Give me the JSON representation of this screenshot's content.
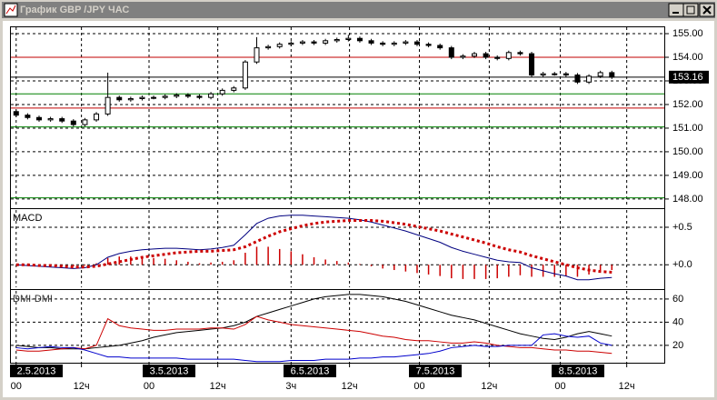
{
  "chart_data": [
    {
      "type": "candlestick",
      "title": "График GBP /JPY ЧАС",
      "x": [
        0,
        1,
        2,
        3,
        4,
        5,
        6,
        7,
        8,
        9,
        10,
        11,
        12,
        13,
        14,
        15,
        16,
        17,
        18,
        19,
        20,
        21,
        22,
        23,
        24,
        25,
        26,
        27,
        28,
        29,
        30,
        31,
        32,
        33,
        34,
        35,
        36,
        37,
        38,
        39,
        40,
        41,
        42,
        43,
        44,
        45,
        46,
        47,
        48,
        49,
        50,
        51,
        52
      ],
      "open": [
        151.7,
        151.55,
        151.45,
        151.35,
        151.4,
        151.3,
        151.15,
        151.35,
        151.6,
        152.3,
        152.2,
        152.25,
        152.3,
        152.3,
        152.35,
        152.4,
        152.35,
        152.3,
        152.45,
        152.6,
        152.7,
        153.8,
        154.4,
        154.45,
        154.55,
        154.6,
        154.65,
        154.6,
        154.7,
        154.75,
        154.8,
        154.7,
        154.6,
        154.55,
        154.6,
        154.65,
        154.55,
        154.5,
        154.4,
        154.0,
        154.05,
        154.15,
        154.0,
        153.95,
        154.2,
        154.15,
        153.25,
        153.3,
        153.3,
        153.25,
        152.95,
        153.2,
        153.35
      ],
      "high": [
        151.78,
        151.63,
        151.53,
        151.48,
        151.48,
        151.38,
        151.43,
        151.68,
        153.35,
        152.38,
        152.33,
        152.38,
        152.38,
        152.43,
        152.48,
        152.48,
        152.43,
        152.53,
        152.68,
        152.78,
        153.88,
        154.85,
        154.53,
        154.63,
        154.68,
        154.73,
        154.73,
        154.78,
        154.83,
        154.95,
        154.88,
        154.78,
        154.68,
        154.68,
        154.73,
        154.73,
        154.63,
        154.58,
        154.48,
        154.13,
        154.23,
        154.23,
        154.08,
        154.28,
        154.28,
        154.23,
        153.38,
        153.38,
        153.38,
        153.33,
        153.28,
        153.43,
        153.43
      ],
      "low": [
        151.47,
        151.37,
        151.27,
        151.27,
        151.22,
        151.07,
        151.07,
        151.27,
        151.52,
        152.12,
        152.12,
        152.17,
        152.22,
        152.22,
        152.27,
        152.27,
        152.22,
        152.22,
        152.37,
        152.52,
        152.62,
        153.72,
        154.32,
        154.37,
        154.47,
        154.52,
        154.52,
        154.52,
        154.62,
        154.67,
        154.62,
        154.52,
        154.47,
        154.47,
        154.52,
        154.47,
        154.42,
        154.32,
        153.92,
        153.92,
        153.97,
        153.92,
        153.87,
        153.87,
        154.07,
        153.17,
        153.17,
        153.22,
        153.17,
        152.87,
        152.87,
        153.12,
        153.08
      ],
      "close": [
        151.55,
        151.45,
        151.35,
        151.4,
        151.3,
        151.15,
        151.35,
        151.6,
        152.3,
        152.2,
        152.25,
        152.3,
        152.3,
        152.35,
        152.4,
        152.35,
        152.3,
        152.45,
        152.6,
        152.7,
        153.8,
        154.4,
        154.45,
        154.55,
        154.6,
        154.65,
        154.6,
        154.7,
        154.75,
        154.8,
        154.7,
        154.6,
        154.55,
        154.6,
        154.65,
        154.55,
        154.5,
        154.4,
        154.0,
        154.05,
        154.15,
        154.0,
        153.95,
        154.2,
        154.15,
        153.25,
        153.3,
        153.3,
        153.25,
        152.95,
        153.2,
        153.35,
        153.16
      ],
      "xlim": [
        -0.3,
        56.5
      ],
      "ylim": [
        147.65,
        155.27
      ],
      "yticks": [
        {
          "value": 148,
          "label": "148.00"
        },
        {
          "value": 149,
          "label": "149.00"
        },
        {
          "value": 150,
          "label": "150.00"
        },
        {
          "value": 151,
          "label": "151.00"
        },
        {
          "value": 152,
          "label": "152.00"
        },
        {
          "value": 153,
          "label": "153.00"
        },
        {
          "value": 154,
          "label": "154.00"
        },
        {
          "value": 155,
          "label": "155.00"
        }
      ],
      "levels": [
        {
          "value": 154.0,
          "color": "#c00000"
        },
        {
          "value": 152.45,
          "color": "#008000"
        },
        {
          "value": 151.85,
          "color": "#c00000"
        },
        {
          "value": 151.05,
          "color": "#008000"
        },
        {
          "value": 148.05,
          "color": "#008000"
        }
      ],
      "last_price": 153.16,
      "grid": true
    },
    {
      "type": "line",
      "title": "MACD",
      "ylim": [
        -0.3,
        0.73
      ],
      "yticks": [
        {
          "value": 0,
          "label": "+0.0"
        },
        {
          "value": 0.5,
          "label": "+0.5"
        }
      ],
      "grid": true,
      "series": [
        {
          "style": "histogram",
          "color": "#cc0000",
          "values": [
            0.0,
            -0.01,
            -0.01,
            -0.02,
            -0.02,
            -0.02,
            -0.01,
            0.02,
            0.09,
            0.11,
            0.11,
            0.1,
            0.09,
            0.08,
            0.06,
            0.04,
            0.02,
            0.03,
            0.04,
            0.06,
            0.16,
            0.24,
            0.24,
            0.21,
            0.18,
            0.14,
            0.1,
            0.07,
            0.05,
            0.03,
            0.01,
            -0.02,
            -0.05,
            -0.07,
            -0.09,
            -0.11,
            -0.13,
            -0.15,
            -0.18,
            -0.19,
            -0.19,
            -0.19,
            -0.18,
            -0.16,
            -0.14,
            -0.16,
            -0.16,
            -0.16,
            -0.15,
            -0.16,
            -0.13,
            -0.09,
            -0.07
          ]
        },
        {
          "style": "line",
          "color": "#000080",
          "values": [
            0.0,
            -0.01,
            -0.02,
            -0.03,
            -0.04,
            -0.05,
            -0.04,
            0.0,
            0.1,
            0.15,
            0.18,
            0.2,
            0.21,
            0.22,
            0.22,
            0.21,
            0.2,
            0.21,
            0.23,
            0.26,
            0.4,
            0.55,
            0.62,
            0.65,
            0.66,
            0.66,
            0.65,
            0.64,
            0.63,
            0.62,
            0.6,
            0.57,
            0.53,
            0.49,
            0.45,
            0.4,
            0.35,
            0.3,
            0.23,
            0.18,
            0.14,
            0.1,
            0.06,
            0.04,
            0.03,
            -0.04,
            -0.08,
            -0.12,
            -0.15,
            -0.2,
            -0.2,
            -0.18,
            -0.17
          ]
        },
        {
          "style": "dots",
          "color": "#cc0000",
          "values": [
            0.0,
            0.0,
            -0.01,
            -0.01,
            -0.02,
            -0.03,
            -0.03,
            -0.02,
            0.01,
            0.04,
            0.07,
            0.1,
            0.12,
            0.14,
            0.16,
            0.17,
            0.18,
            0.18,
            0.19,
            0.2,
            0.24,
            0.31,
            0.38,
            0.44,
            0.48,
            0.52,
            0.55,
            0.57,
            0.58,
            0.59,
            0.59,
            0.59,
            0.58,
            0.56,
            0.54,
            0.51,
            0.48,
            0.45,
            0.41,
            0.37,
            0.33,
            0.29,
            0.24,
            0.2,
            0.17,
            0.12,
            0.08,
            0.04,
            0.0,
            -0.04,
            -0.07,
            -0.09,
            -0.1
          ]
        }
      ]
    },
    {
      "type": "line",
      "title": "DMI-DMI",
      "ylim": [
        5,
        67
      ],
      "yticks": [
        20,
        40,
        60
      ],
      "grid": true,
      "xticks": [
        {
          "value": 0,
          "label": "00"
        },
        {
          "value": 5.7,
          "label": "12ч"
        },
        {
          "value": 11.6,
          "label": "00"
        },
        {
          "value": 17.6,
          "label": "12ч"
        },
        {
          "value": 24,
          "label": "3ч"
        },
        {
          "value": 29.1,
          "label": "12ч"
        },
        {
          "value": 35.2,
          "label": "00"
        },
        {
          "value": 41.3,
          "label": "12ч"
        },
        {
          "value": 47.5,
          "label": "00"
        },
        {
          "value": 53.3,
          "label": "12ч"
        }
      ],
      "date_labels": [
        "2.5.2013",
        "3.5.2013",
        "6.5.2013",
        "7.5.2013",
        "8.5.2013"
      ],
      "series": [
        {
          "style": "line",
          "color": "#000000",
          "values": [
            20,
            19,
            18,
            18,
            17,
            17,
            17,
            18,
            19,
            20,
            22,
            24,
            27,
            29,
            31,
            32,
            33,
            34,
            35,
            37,
            40,
            45,
            48,
            51,
            54,
            57,
            60,
            62,
            63,
            64,
            64,
            63,
            62,
            60,
            58,
            55,
            52,
            49,
            46,
            44,
            42,
            39,
            36,
            33,
            30,
            28,
            26,
            25,
            27,
            30,
            32,
            30,
            28
          ]
        },
        {
          "style": "line",
          "color": "#cc0000",
          "values": [
            16,
            15,
            15,
            16,
            17,
            18,
            17,
            20,
            43,
            37,
            35,
            34,
            33,
            33,
            34,
            34,
            34,
            35,
            35,
            34,
            38,
            45,
            42,
            40,
            38,
            37,
            36,
            35,
            34,
            33,
            32,
            30,
            28,
            27,
            25,
            24,
            24,
            23,
            22,
            22,
            23,
            22,
            20,
            19,
            18,
            18,
            17,
            16,
            16,
            15,
            15,
            14,
            13
          ]
        },
        {
          "style": "line",
          "color": "#0000cc",
          "values": [
            18,
            17,
            18,
            19,
            18,
            18,
            16,
            13,
            10,
            10,
            9,
            9,
            9,
            9,
            9,
            8,
            8,
            8,
            8,
            8,
            7,
            6,
            6,
            6,
            7,
            7,
            7,
            8,
            8,
            8,
            9,
            9,
            10,
            10,
            11,
            12,
            13,
            15,
            18,
            19,
            20,
            19,
            19,
            20,
            20,
            20,
            29,
            30,
            28,
            27,
            28,
            22,
            20
          ]
        }
      ]
    }
  ]
}
